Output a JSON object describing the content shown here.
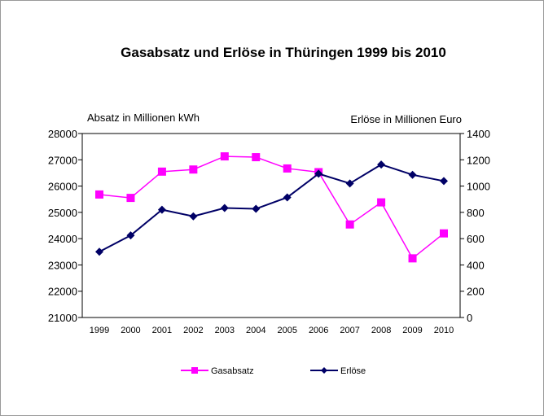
{
  "chart_data": {
    "type": "line",
    "title": "Gasabsatz und Erlöse in Thüringen 1999 bis 2010",
    "ylabel_left": "Absatz in Millionen  kWh",
    "ylabel_right": "Erlöse in Millionen Euro",
    "categories": [
      "1999",
      "2000",
      "2001",
      "2002",
      "2003",
      "2004",
      "2005",
      "2006",
      "2007",
      "2008",
      "2009",
      "2010"
    ],
    "ylim_left": [
      21000,
      28000
    ],
    "yticks_left": [
      21000,
      22000,
      23000,
      24000,
      25000,
      26000,
      27000,
      28000
    ],
    "ylim_right": [
      0,
      1400
    ],
    "yticks_right": [
      0,
      200,
      400,
      600,
      800,
      1000,
      1200,
      1400
    ],
    "grid": false,
    "legend_position": "bottom",
    "series": [
      {
        "name": "Gasabsatz",
        "axis": "left",
        "color": "#ff00ff",
        "marker": "square",
        "values": [
          25680,
          25550,
          26550,
          26630,
          27130,
          27100,
          26670,
          26530,
          24540,
          25380,
          23250,
          24200
        ]
      },
      {
        "name": "Erlöse",
        "axis": "right",
        "color": "#000066",
        "marker": "diamond",
        "values": [
          500,
          625,
          820,
          770,
          833,
          827,
          914,
          1094,
          1020,
          1164,
          1086,
          1038
        ]
      }
    ]
  }
}
